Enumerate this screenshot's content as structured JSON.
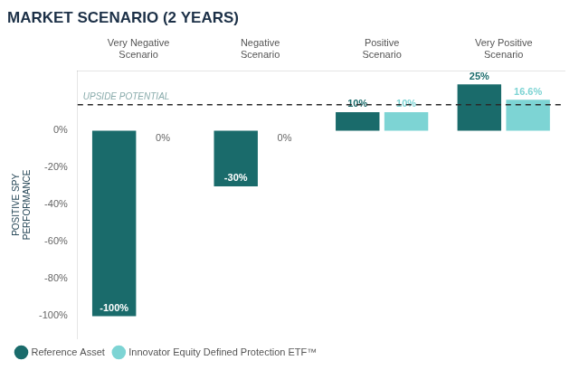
{
  "chart_data": {
    "type": "bar",
    "title": "MARKET SCENARIO (2 YEARS)",
    "y_label": "POSITIVE SPY\nPERFORMANCE",
    "categories": [
      "Very Negative\nScenario",
      "Negative\nScenario",
      "Positive\nScenario",
      "Very Positive\nScenario"
    ],
    "series": [
      {
        "name": "Reference Asset",
        "color": "#1a6b6b",
        "values": [
          -100,
          -30,
          10,
          25
        ],
        "value_labels": [
          "-100%",
          "-30%",
          "10%",
          "25%"
        ]
      },
      {
        "name": "Innovator Equity Defined Protection ETF™",
        "color": "#7dd4d4",
        "values": [
          0,
          0,
          10,
          16.6
        ],
        "value_labels": [
          "0%",
          "0%",
          "10%",
          "16.6%"
        ]
      }
    ],
    "ylim": [
      -112,
      32
    ],
    "yticks": [
      {
        "value": -100,
        "label": "-100%"
      },
      {
        "value": -80,
        "label": "-80%"
      },
      {
        "value": -60,
        "label": "-60%"
      },
      {
        "value": -40,
        "label": "-40%"
      },
      {
        "value": -20,
        "label": "-20%"
      },
      {
        "value": 0,
        "label": "0%"
      }
    ],
    "annotations": [
      {
        "y": 14,
        "text": "UPSIDE POTENTIAL",
        "line_style": "dashed"
      }
    ],
    "grid": false,
    "legend": "bottom",
    "data_labels": true
  }
}
